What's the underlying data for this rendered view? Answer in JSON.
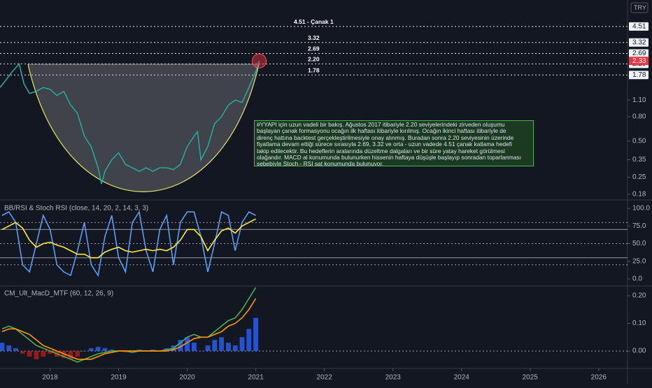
{
  "chart_data": [
    {
      "type": "line",
      "log_scale": true,
      "currency": "TRY",
      "x": [
        2017.27,
        2017.35,
        2017.45,
        2017.55,
        2017.62,
        2017.7,
        2017.8,
        2017.9,
        2018.0,
        2018.1,
        2018.2,
        2018.3,
        2018.4,
        2018.5,
        2018.6,
        2018.7,
        2018.75,
        2018.8,
        2018.9,
        2019.0,
        2019.1,
        2019.2,
        2019.3,
        2019.4,
        2019.5,
        2019.6,
        2019.7,
        2019.8,
        2019.9,
        2020.0,
        2020.1,
        2020.15,
        2020.2,
        2020.3,
        2020.4,
        2020.5,
        2020.6,
        2020.7,
        2020.8,
        2020.9,
        2021.0,
        2021.05
      ],
      "series": [
        {
          "color": "#26a69a",
          "values": [
            1.4,
            1.6,
            1.9,
            2.2,
            1.5,
            1.25,
            1.3,
            1.4,
            1.35,
            1.2,
            1.3,
            1.0,
            0.85,
            0.55,
            0.45,
            0.3,
            0.22,
            0.28,
            0.35,
            0.4,
            0.32,
            0.3,
            0.28,
            0.3,
            0.28,
            0.3,
            0.3,
            0.29,
            0.32,
            0.45,
            0.55,
            0.6,
            0.35,
            0.45,
            0.7,
            0.8,
            1.0,
            1.1,
            1.05,
            1.4,
            1.9,
            2.33
          ]
        }
      ],
      "xlim": [
        2017.27,
        2026.4
      ],
      "xticks": [
        2018,
        2019,
        2020,
        2021,
        2022,
        2023,
        2024,
        2025,
        2026
      ],
      "ylim": [
        0.164,
        7.5
      ],
      "yticks": [
        {
          "value": 1.1,
          "label": "1.10"
        },
        {
          "value": 0.8,
          "label": "0.80"
        },
        {
          "value": 0.5,
          "label": "0.50"
        },
        0.35,
        0.25,
        0.18
      ],
      "levels": [
        4.51,
        3.32,
        2.69,
        {
          "value": 2.2,
          "label": "2.20"
        },
        1.78
      ],
      "level_notes": [
        "4.51 - Çanak 1",
        "3.32",
        "2.69",
        "2.20",
        "1.78"
      ],
      "last_value": 2.33,
      "annotation": [
        "#YYAPI için uzun vadeli bir bakış. Ağustos 2017 itibariyle 2.20 seviyelerindeki zirveden oluşumu",
        "başlayan çanak formasyonu ocağın ilk haftası itibariyle kırılmış. Ocağın ikinci haftası itibariyle de",
        "direnç hattına backtest gerçekleştirilmesiyle onay alınmış. Buradan sonra 2.20 seviyesinin üzerinde",
        "fiyatlama devam ettiği sürece sırasıyla 2.69, 3.32 ve orta - uzun vadede 4.51 çanak katlama hedefi",
        "takip edilecektir. Bu hedeflerin aralarında düzeltme dalgaları ve bir süre yatay hareket görülmesi",
        "olağandır. MACD al konumunda bulunurken hissenin haftaya düşüşle başlayıp sonradan toparlanması",
        "sebebiyle Stoch - RSI sat konumunda bulunuyor."
      ]
    },
    {
      "type": "line",
      "title": "BB/RSI & Stoch RSI (close, 14, 20, 2, 14, 3, 3)",
      "x": [
        2017.3,
        2017.4,
        2017.5,
        2017.6,
        2017.7,
        2017.8,
        2017.9,
        2018.0,
        2018.1,
        2018.2,
        2018.3,
        2018.4,
        2018.5,
        2018.6,
        2018.7,
        2018.8,
        2018.9,
        2019.0,
        2019.1,
        2019.2,
        2019.3,
        2019.4,
        2019.5,
        2019.6,
        2019.7,
        2019.8,
        2019.9,
        2020.0,
        2020.1,
        2020.2,
        2020.3,
        2020.4,
        2020.5,
        2020.6,
        2020.7,
        2020.8,
        2020.9,
        2021.0
      ],
      "series": [
        {
          "color": "#5b9cf6",
          "values": [
            90,
            95,
            80,
            20,
            10,
            50,
            90,
            70,
            20,
            10,
            5,
            40,
            80,
            20,
            5,
            60,
            90,
            30,
            10,
            80,
            95,
            40,
            10,
            70,
            90,
            20,
            80,
            95,
            95,
            60,
            10,
            50,
            95,
            90,
            40,
            80,
            95,
            90
          ]
        },
        {
          "color": "#ffeb3b",
          "values": [
            70,
            75,
            80,
            72,
            55,
            45,
            50,
            52,
            48,
            45,
            40,
            35,
            35,
            30,
            30,
            38,
            42,
            45,
            40,
            38,
            40,
            42,
            40,
            42,
            40,
            45,
            55,
            70,
            70,
            60,
            40,
            55,
            68,
            72,
            65,
            75,
            80,
            85
          ]
        }
      ],
      "xlim": [
        2017.27,
        2026.4
      ],
      "ylim": [
        -8.9,
        109.9
      ],
      "yticks": [
        {
          "value": 100,
          "label": "100.0"
        },
        {
          "value": 75,
          "label": "75.0"
        },
        {
          "value": 50,
          "label": "50.0"
        },
        {
          "value": 25,
          "label": "25.0"
        },
        {
          "value": 0,
          "label": "0.0"
        }
      ],
      "levels": [
        80,
        70,
        50,
        30,
        20
      ],
      "level_dashed": [
        true,
        false,
        true,
        false,
        true
      ]
    },
    {
      "type": "line",
      "title": "CM_Ult_MacD_MTF (60, 12, 26, 9)",
      "x": [
        2017.3,
        2017.4,
        2017.5,
        2017.6,
        2017.7,
        2017.8,
        2017.9,
        2018.0,
        2018.1,
        2018.2,
        2018.3,
        2018.4,
        2018.5,
        2018.6,
        2018.7,
        2018.8,
        2018.9,
        2019.0,
        2019.1,
        2019.2,
        2019.3,
        2019.4,
        2019.5,
        2019.6,
        2019.7,
        2019.8,
        2019.9,
        2020.0,
        2020.1,
        2020.2,
        2020.3,
        2020.4,
        2020.5,
        2020.6,
        2020.7,
        2020.8,
        2020.9,
        2021.0
      ],
      "series": [
        {
          "style": "histogram",
          "color": "#2962ff",
          "negative_color": "#b71c1c",
          "values": [
            0.03,
            0.02,
            0.01,
            -0.01,
            -0.02,
            -0.03,
            -0.02,
            -0.01,
            -0.02,
            -0.025,
            -0.03,
            -0.02,
            0.0,
            0.01,
            0.015,
            0.01,
            0.005,
            0.0,
            -0.005,
            0.0,
            0.005,
            0.0,
            0.005,
            0.0,
            0.01,
            0.02,
            0.04,
            0.05,
            0.03,
            0.0,
            0.02,
            0.04,
            0.05,
            0.03,
            0.02,
            0.05,
            0.08,
            0.12
          ]
        },
        {
          "color": "#4caf50",
          "values": [
            0.08,
            0.09,
            0.08,
            0.06,
            0.04,
            0.02,
            0.01,
            0.0,
            -0.01,
            -0.02,
            -0.03,
            -0.04,
            -0.03,
            -0.02,
            -0.01,
            -0.005,
            0.0,
            0.0,
            0.0,
            -0.005,
            0.0,
            0.0,
            0.0,
            0.0,
            0.005,
            0.01,
            0.03,
            0.05,
            0.06,
            0.05,
            0.05,
            0.07,
            0.09,
            0.11,
            0.12,
            0.15,
            0.19,
            0.23
          ]
        },
        {
          "color": "#ff9800",
          "values": [
            0.07,
            0.08,
            0.08,
            0.07,
            0.06,
            0.04,
            0.02,
            0.01,
            0.0,
            -0.01,
            -0.02,
            -0.03,
            -0.03,
            -0.03,
            -0.02,
            -0.01,
            -0.005,
            0.0,
            0.0,
            0.0,
            0.0,
            0.0,
            0.0,
            0.0,
            0.0,
            0.005,
            0.015,
            0.03,
            0.045,
            0.05,
            0.05,
            0.06,
            0.07,
            0.09,
            0.1,
            0.12,
            0.15,
            0.19
          ]
        }
      ],
      "xlim": [
        2017.27,
        2026.4
      ],
      "ylim": [
        -0.058,
        0.233
      ],
      "yticks": [
        {
          "value": 0.2,
          "label": "0.20"
        },
        {
          "value": 0.1,
          "label": "0.10"
        },
        {
          "value": 0,
          "label": "0.00"
        }
      ],
      "levels": [
        0
      ]
    }
  ]
}
